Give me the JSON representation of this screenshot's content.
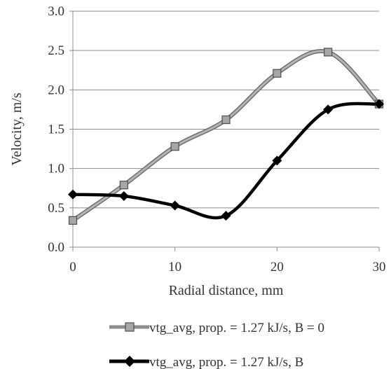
{
  "chart_data": {
    "type": "line",
    "xlabel": "Radial distance, mm",
    "ylabel": "Velocity, m/s",
    "x": [
      0,
      5,
      10,
      15,
      20,
      25,
      30
    ],
    "xlim": [
      0,
      30
    ],
    "ylim": [
      0,
      3.0
    ],
    "xticks": [
      "0",
      "10",
      "20",
      "30"
    ],
    "yticks": [
      "0.0",
      "0.5",
      "1.0",
      "1.5",
      "2.0",
      "2.5",
      "3.0"
    ],
    "grid": "horizontal",
    "legend_position": "bottom",
    "smooth": true,
    "series": [
      {
        "name": "vtg_avg, prop. = 1.27 kJ/s, B = 0",
        "values": [
          0.34,
          0.79,
          1.28,
          1.62,
          2.21,
          2.48,
          1.82
        ],
        "marker": "square",
        "line_color": "#8c8c8c",
        "marker_color": "#a6a6a6"
      },
      {
        "name": "vtg_avg, prop. = 1.27 kJ/s, B",
        "values": [
          0.67,
          0.65,
          0.53,
          0.4,
          1.1,
          1.75,
          1.82
        ],
        "marker": "diamond",
        "line_color": "#000000",
        "marker_color": "#000000"
      }
    ]
  }
}
